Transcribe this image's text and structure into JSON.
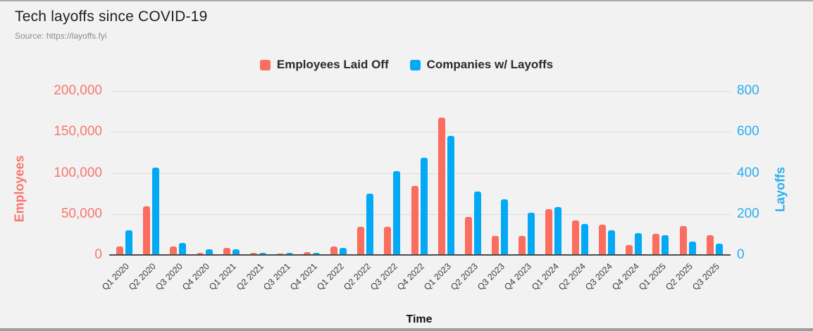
{
  "header": {
    "title": "Tech layoffs since COVID-19",
    "source": "Source: https://layoffs.fyi"
  },
  "legend": [
    {
      "label": "Employees Laid Off",
      "color": "#fa6d5f"
    },
    {
      "label": "Companies w/ Layoffs",
      "color": "#03a9f4"
    }
  ],
  "chart_data": {
    "type": "bar",
    "title": "Tech layoffs since COVID-19",
    "xlabel": "Time",
    "grid": true,
    "legend_position": "top",
    "categories": [
      "Q1 2020",
      "Q2 2020",
      "Q3 2020",
      "Q4 2020",
      "Q1 2021",
      "Q2 2021",
      "Q3 2021",
      "Q4 2021",
      "Q1 2022",
      "Q2 2022",
      "Q3 2022",
      "Q4 2022",
      "Q1 2023",
      "Q2 2023",
      "Q3 2023",
      "Q4 2023",
      "Q1 2024",
      "Q2 2024",
      "Q3 2024",
      "Q4 2024",
      "Q1 2025",
      "Q2 2025",
      "Q3 2025"
    ],
    "series": [
      {
        "name": "Employees Laid Off",
        "axis": "left",
        "color": "#fa6d5f",
        "values": [
          10000,
          59000,
          10000,
          2500,
          9000,
          2600,
          2000,
          3500,
          10500,
          34000,
          34000,
          84000,
          167000,
          46000,
          23000,
          23500,
          56000,
          42000,
          37000,
          12000,
          26000,
          35000,
          24000
        ]
      },
      {
        "name": "Companies w/ Layoffs",
        "axis": "right",
        "color": "#03a9f4",
        "values": [
          120,
          425,
          60,
          28,
          26,
          9,
          12,
          9,
          33,
          300,
          410,
          475,
          580,
          310,
          270,
          205,
          235,
          150,
          120,
          105,
          95,
          65,
          55
        ]
      }
    ],
    "left_axis": {
      "label": "Employees",
      "ticks": [
        "200,000",
        "150,000",
        "100,000",
        "50,000",
        "0"
      ],
      "max": 200000,
      "min": 0,
      "color": "#f8766d"
    },
    "right_axis": {
      "label": "Layoffs",
      "ticks": [
        "800",
        "600",
        "400",
        "200",
        "0"
      ],
      "max": 800,
      "min": 0,
      "color": "#2aacf2"
    }
  }
}
